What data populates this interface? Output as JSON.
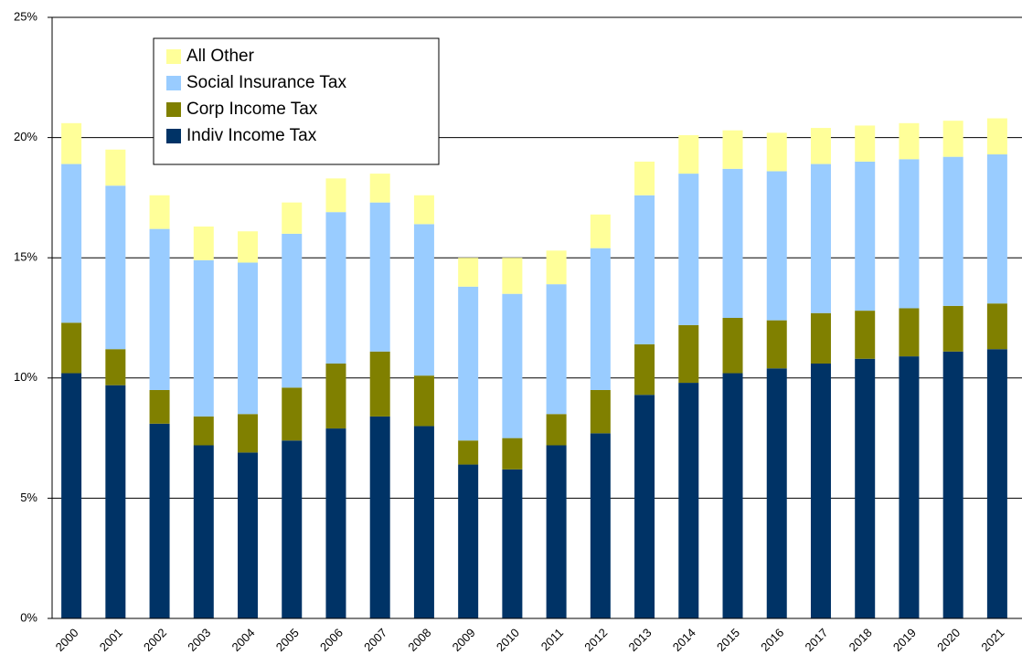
{
  "chart_data": {
    "type": "stacked-bar",
    "categories": [
      "2000",
      "2001",
      "2002",
      "2003",
      "2004",
      "2005",
      "2006",
      "2007",
      "2008",
      "2009",
      "2010",
      "2011",
      "2012",
      "2013",
      "2014",
      "2015",
      "2016",
      "2017",
      "2018",
      "2019",
      "2020",
      "2021"
    ],
    "series": [
      {
        "name": "Indiv Income Tax",
        "color": "#003366",
        "values": [
          10.2,
          9.7,
          8.1,
          7.2,
          6.9,
          7.4,
          7.9,
          8.4,
          8.0,
          6.4,
          6.2,
          7.2,
          7.7,
          9.3,
          9.8,
          10.2,
          10.4,
          10.6,
          10.8,
          10.9,
          11.1,
          11.2
        ]
      },
      {
        "name": "Corp Income Tax",
        "color": "#808000",
        "values": [
          2.1,
          1.5,
          1.4,
          1.2,
          1.6,
          2.2,
          2.7,
          2.7,
          2.1,
          1.0,
          1.3,
          1.3,
          1.8,
          2.1,
          2.4,
          2.3,
          2.0,
          2.1,
          2.0,
          2.0,
          1.9,
          1.9
        ]
      },
      {
        "name": "Social Insurance Tax",
        "color": "#99ccff",
        "values": [
          6.6,
          6.8,
          6.7,
          6.5,
          6.3,
          6.4,
          6.3,
          6.2,
          6.3,
          6.4,
          6.0,
          5.4,
          5.9,
          6.2,
          6.3,
          6.2,
          6.2,
          6.2,
          6.2,
          6.2,
          6.2,
          6.2
        ]
      },
      {
        "name": "All Other",
        "color": "#ffff99",
        "values": [
          1.7,
          1.5,
          1.4,
          1.4,
          1.3,
          1.3,
          1.4,
          1.2,
          1.2,
          1.2,
          1.5,
          1.4,
          1.4,
          1.4,
          1.6,
          1.6,
          1.6,
          1.5,
          1.5,
          1.5,
          1.5,
          1.5
        ]
      }
    ],
    "ylim": [
      0,
      25
    ],
    "yticks": [
      {
        "value": 0,
        "label": "0%"
      },
      {
        "value": 5,
        "label": "5%"
      },
      {
        "value": 10,
        "label": "10%"
      },
      {
        "value": 15,
        "label": "15%"
      },
      {
        "value": 20,
        "label": "20%"
      },
      {
        "value": 25,
        "label": "25%"
      }
    ],
    "grid": true
  }
}
